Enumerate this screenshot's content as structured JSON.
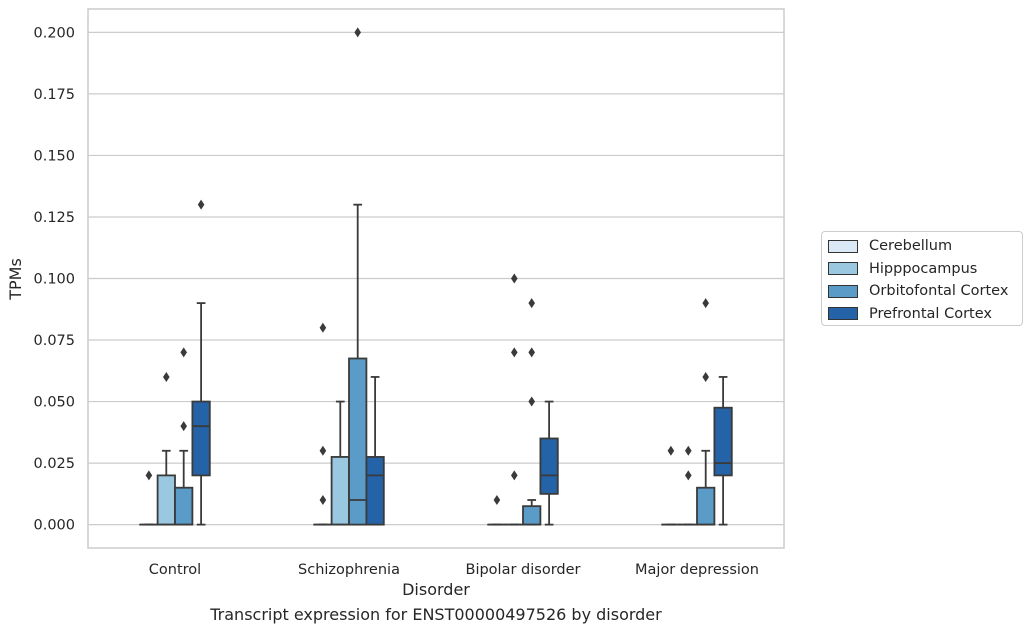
{
  "caption": "Transcript expression for ENST00000497526 by disorder",
  "chart_data": {
    "type": "box",
    "xlabel": "Disorder",
    "ylabel": "TPMs",
    "ylim": [
      -0.0095,
      0.2095
    ],
    "yticks": [
      "0.000",
      "0.025",
      "0.050",
      "0.075",
      "0.100",
      "0.125",
      "0.150",
      "0.175",
      "0.200"
    ],
    "categories": [
      "Control",
      "Schizophrenia",
      "Bipolar disorder",
      "Major depression"
    ],
    "grid": "horizontal",
    "legend_position": "right",
    "series": [
      {
        "name": "Cerebellum",
        "color": "#dbe9f6",
        "boxes": [
          {
            "whislo": 0,
            "q1": 0,
            "med": 0,
            "q3": 0,
            "whishi": 0,
            "fliers": [
              0.02
            ]
          },
          {
            "whislo": 0,
            "q1": 0,
            "med": 0,
            "q3": 0,
            "whishi": 0,
            "fliers": [
              0.01,
              0.03,
              0.08
            ]
          },
          {
            "whislo": 0,
            "q1": 0,
            "med": 0,
            "q3": 0,
            "whishi": 0,
            "fliers": [
              0.01
            ]
          },
          {
            "whislo": 0,
            "q1": 0,
            "med": 0,
            "q3": 0,
            "whishi": 0,
            "fliers": [
              0.03
            ]
          }
        ]
      },
      {
        "name": "Hipppocampus",
        "color": "#9ac8e0",
        "boxes": [
          {
            "whislo": 0,
            "q1": 0,
            "med": 0,
            "q3": 0.02,
            "whishi": 0.03,
            "fliers": [
              0.06
            ]
          },
          {
            "whislo": 0,
            "q1": 0,
            "med": 0,
            "q3": 0.0275,
            "whishi": 0.05,
            "fliers": []
          },
          {
            "whislo": 0,
            "q1": 0,
            "med": 0,
            "q3": 0,
            "whishi": 0,
            "fliers": [
              0.02,
              0.07,
              0.1
            ]
          },
          {
            "whislo": 0,
            "q1": 0,
            "med": 0,
            "q3": 0,
            "whishi": 0,
            "fliers": [
              0.02,
              0.03
            ]
          }
        ]
      },
      {
        "name": "Orbitofontal Cortex",
        "color": "#5a9bc8",
        "boxes": [
          {
            "whislo": 0,
            "q1": 0,
            "med": 0,
            "q3": 0.015,
            "whishi": 0.03,
            "fliers": [
              0.04,
              0.07
            ]
          },
          {
            "whislo": 0,
            "q1": 0,
            "med": 0.01,
            "q3": 0.0675,
            "whishi": 0.13,
            "fliers": [
              0.2
            ]
          },
          {
            "whislo": 0,
            "q1": 0,
            "med": 0,
            "q3": 0.0075,
            "whishi": 0.01,
            "fliers": [
              0.05,
              0.07,
              0.09
            ]
          },
          {
            "whislo": 0,
            "q1": 0,
            "med": 0,
            "q3": 0.015,
            "whishi": 0.03,
            "fliers": [
              0.06,
              0.09
            ]
          }
        ]
      },
      {
        "name": "Prefrontal Cortex",
        "color": "#2563a8",
        "boxes": [
          {
            "whislo": 0,
            "q1": 0.02,
            "med": 0.04,
            "q3": 0.05,
            "whishi": 0.09,
            "fliers": [
              0.13
            ]
          },
          {
            "whislo": 0,
            "q1": 0,
            "med": 0.02,
            "q3": 0.0275,
            "whishi": 0.06,
            "fliers": []
          },
          {
            "whislo": 0,
            "q1": 0.0125,
            "med": 0.02,
            "q3": 0.035,
            "whishi": 0.05,
            "fliers": []
          },
          {
            "whislo": 0,
            "q1": 0.02,
            "med": 0.025,
            "q3": 0.0475,
            "whishi": 0.06,
            "fliers": []
          }
        ]
      }
    ]
  }
}
